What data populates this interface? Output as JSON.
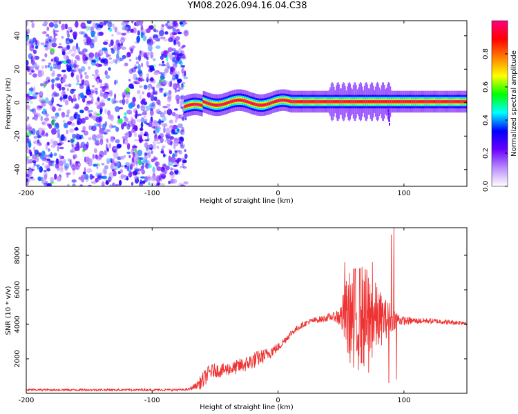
{
  "figure_title": "YM08.2026.094.16.04.C38",
  "chart_data": [
    {
      "type": "heatmap",
      "title": "YM08.2026.094.16.04.C38",
      "xlabel": "Height of straight line (km)",
      "ylabel": "Frequency (Hz)",
      "xlim": [
        -200,
        150
      ],
      "ylim": [
        -50,
        49
      ],
      "xticks": [
        -200,
        -100,
        0,
        100
      ],
      "xtick_labels": [
        "-200",
        "-100",
        "0",
        "100"
      ],
      "yticks": [
        -40,
        -20,
        0,
        20,
        40
      ],
      "ytick_labels": [
        "-40",
        "-20",
        "0",
        "20",
        "40"
      ],
      "noise_region_x": [
        -200,
        -73
      ],
      "noise_level": 0.25,
      "signal_start_km": -75,
      "signal_end_km": 150,
      "center_band_hz": [
        -1.5,
        1.5
      ],
      "side_lobe_hz": [
        -4,
        4
      ],
      "peak_amplitude": 1.0,
      "colorbar": {
        "label": "Normalized spectral amplitude",
        "range": [
          0,
          1
        ],
        "ticks": [
          0,
          0.2,
          0.4,
          0.6,
          0.8
        ],
        "tick_labels": [
          "0.0",
          "0.2",
          "0.4",
          "0.6",
          "0.8"
        ],
        "colors": [
          "#ffffff",
          "#b98cff",
          "#6a00ff",
          "#0000ff",
          "#00ffff",
          "#00ff00",
          "#ffff00",
          "#ff8000",
          "#ff0000",
          "#ff0080"
        ]
      }
    },
    {
      "type": "line",
      "xlabel": "Height of straight line (km)",
      "ylabel": "SNR (10 * v/v)",
      "xlim": [
        -200,
        150
      ],
      "ylim": [
        0,
        9600
      ],
      "xticks": [
        -200,
        -100,
        0,
        100
      ],
      "xtick_labels": [
        "-200",
        "-100",
        "0",
        "100"
      ],
      "yticks": [
        2000,
        4000,
        6000,
        8000
      ],
      "ytick_labels": [
        "2000",
        "4000",
        "6000",
        "8000"
      ],
      "line_color": "#ee3333",
      "series": [
        {
          "name": "SNR",
          "x": [
            -200,
            -150,
            -100,
            -75,
            -70,
            -65,
            -60,
            -55,
            -50,
            -45,
            -40,
            -35,
            -30,
            -25,
            -20,
            -15,
            -10,
            -5,
            0,
            5,
            10,
            15,
            20,
            25,
            30,
            35,
            40,
            45,
            50,
            55,
            60,
            65,
            70,
            75,
            80,
            85,
            90,
            95,
            100,
            110,
            120,
            130,
            140,
            150
          ],
          "values": [
            200,
            200,
            200,
            200,
            250,
            450,
            700,
            1200,
            1350,
            1300,
            1400,
            1450,
            1600,
            1700,
            1900,
            2050,
            2200,
            2450,
            2650,
            3050,
            3450,
            3750,
            4000,
            4150,
            4250,
            4300,
            4400,
            4450,
            4450,
            4450,
            4400,
            4400,
            4350,
            4350,
            4300,
            4300,
            4400,
            4300,
            4200,
            4200,
            4200,
            4150,
            4100,
            4100
          ],
          "noise_amp": [
            60,
            60,
            60,
            60,
            80,
            200,
            500,
            450,
            400,
            400,
            400,
            400,
            450,
            450,
            500,
            450,
            400,
            350,
            250,
            220,
            200,
            180,
            170,
            170,
            180,
            200,
            220,
            260,
            800,
            2500,
            3000,
            3200,
            3000,
            2500,
            1800,
            1200,
            900,
            400,
            250,
            180,
            160,
            150,
            140,
            140
          ],
          "spikes": [
            [
              53,
              7600
            ],
            [
              65,
              7200
            ],
            [
              75,
              7600
            ],
            [
              90,
              9200
            ],
            [
              92,
              9600
            ],
            [
              60,
              1500
            ],
            [
              72,
              1200
            ],
            [
              88,
              600
            ],
            [
              94,
              800
            ]
          ]
        }
      ]
    }
  ]
}
